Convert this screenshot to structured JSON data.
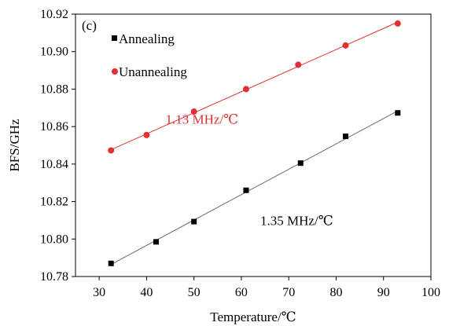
{
  "chart_data": {
    "type": "scatter",
    "panel_label": "(c)",
    "xlabel": "Temperature/℃",
    "ylabel": "BFS/GHz",
    "xlim": [
      25,
      100
    ],
    "ylim": [
      10.78,
      10.92
    ],
    "xticks": [
      30,
      40,
      50,
      60,
      70,
      80,
      90,
      100
    ],
    "yticks": [
      "10.78",
      "10.80",
      "10.82",
      "10.84",
      "10.86",
      "10.88",
      "10.90",
      "10.92"
    ],
    "grid": false,
    "legend_position": "top-left",
    "series": [
      {
        "name": "Annealing",
        "marker": "square",
        "color": "#000000",
        "fit_color": "#6b6b6b",
        "x": [
          32.5,
          42,
          50,
          61,
          72.5,
          82,
          93
        ],
        "y": [
          10.787,
          10.7985,
          10.8093,
          10.826,
          10.8405,
          10.8548,
          10.8673
        ]
      },
      {
        "name": "Unannealing",
        "marker": "circle",
        "color": "#e03030",
        "fit_color": "#e03030",
        "x": [
          32.5,
          40,
          50,
          61,
          72,
          82,
          93
        ],
        "y": [
          10.8473,
          10.8555,
          10.868,
          10.88,
          10.893,
          10.9033,
          10.915
        ]
      }
    ],
    "annotations": [
      {
        "text": "1.13 MHz/℃",
        "color": "#e03030",
        "x": 44,
        "y": 10.8615
      },
      {
        "text": "1.35 MHz/℃",
        "color": "#000000",
        "x": 64,
        "y": 10.8075
      }
    ]
  }
}
